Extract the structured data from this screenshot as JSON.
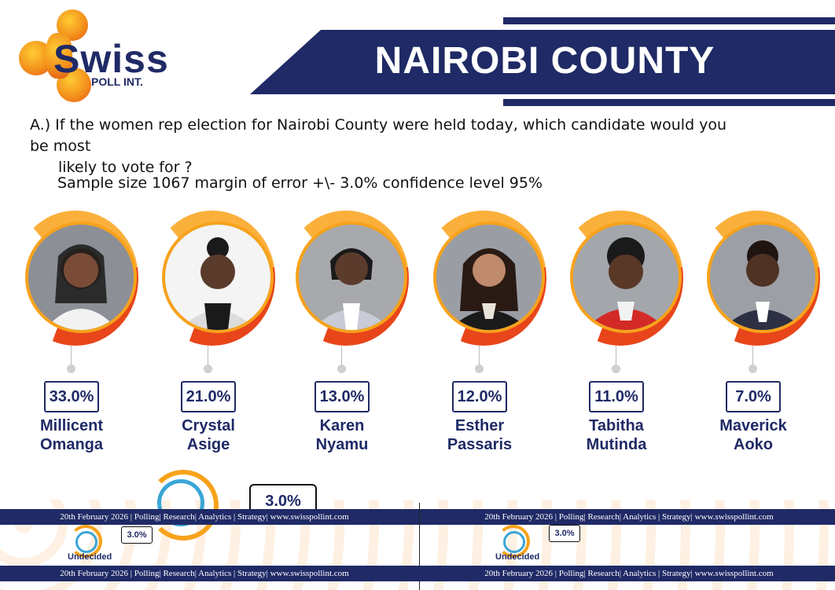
{
  "logo": {
    "word": "Swiss",
    "sub": "POLL INT."
  },
  "header": {
    "title": "NAIROBI COUNTY"
  },
  "question": {
    "line1": "A.) If the women rep election for Nairobi County were held today, which candidate would you be most",
    "line2": "likely to vote for ?",
    "sample": "Sample size 1067  margin of error +\\- 3.0% confidence level 95%"
  },
  "candidates": [
    {
      "first": "Millicent",
      "last": "Omanga",
      "percent": "33.0%"
    },
    {
      "first": "Crystal",
      "last": "Asige",
      "percent": "21.0%"
    },
    {
      "first": "Karen",
      "last": "Nyamu",
      "percent": "13.0%"
    },
    {
      "first": "Esther",
      "last": "Passaris",
      "percent": "12.0%"
    },
    {
      "first": "Tabitha",
      "last": "Mutinda",
      "percent": "11.0%"
    },
    {
      "first": "Maverick",
      "last": "Aoko",
      "percent": "7.0%"
    }
  ],
  "undecided": {
    "label": "Undecided",
    "percent": "3.0%"
  },
  "footer": {
    "text": "20th February 2026 | Polling| Research| Analytics | Strategy| www.swisspollint.com"
  },
  "colors": {
    "navy": "#1f2a66",
    "orange": "#f7a21b",
    "red_orange": "#e8451a",
    "blue": "#3aa6d6"
  }
}
